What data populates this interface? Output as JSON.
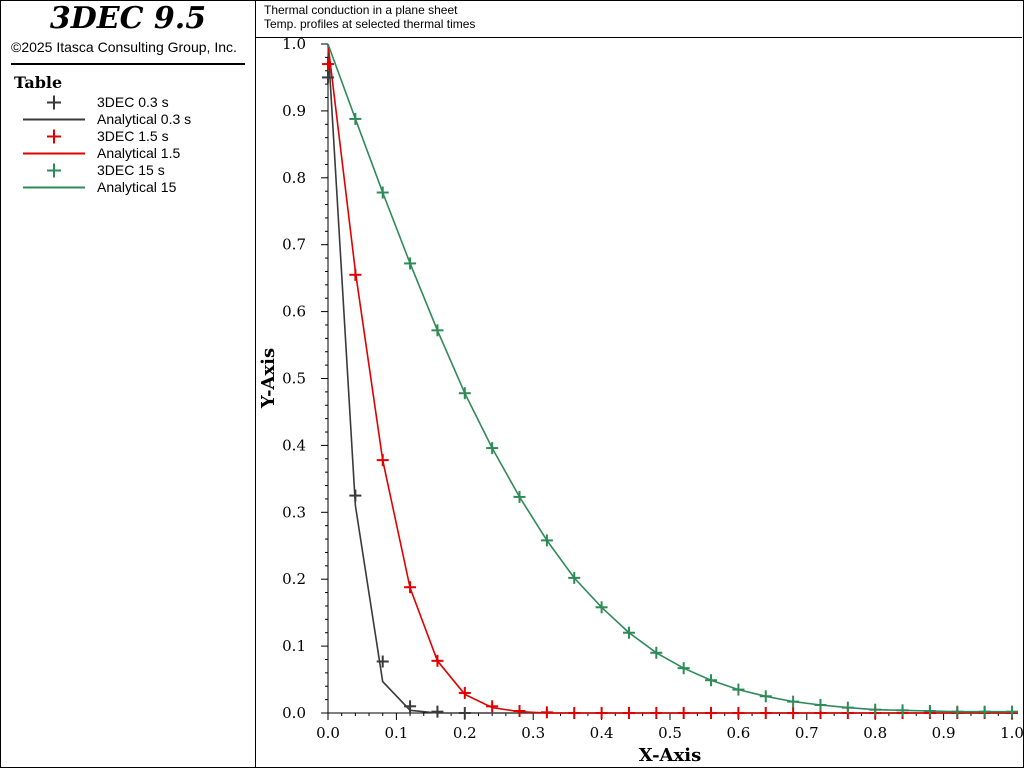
{
  "app": {
    "title": "3DEC 9.5",
    "copyright": "©2025 Itasca Consulting Group, Inc."
  },
  "legend": {
    "title": "Table",
    "items": [
      {
        "label": "3DEC 0.3 s",
        "kind": "marker",
        "color": "#3a3a3a"
      },
      {
        "label": "Analytical 0.3 s",
        "kind": "line",
        "color": "#3a3a3a"
      },
      {
        "label": "3DEC 1.5 s",
        "kind": "marker",
        "color": "#e00000"
      },
      {
        "label": "Analytical 1.5",
        "kind": "line",
        "color": "#e00000"
      },
      {
        "label": "3DEC 15 s",
        "kind": "marker",
        "color": "#2e8b57"
      },
      {
        "label": "Analytical 15",
        "kind": "line",
        "color": "#2e8b57"
      }
    ]
  },
  "plot": {
    "title": "Thermal conduction in a plane sheet",
    "subtitle": "Temp. profiles at selected thermal times"
  },
  "chart_data": {
    "type": "line",
    "xlabel": "X-Axis",
    "ylabel": "Y-Axis",
    "xlim": [
      0,
      1
    ],
    "ylim": [
      0,
      1
    ],
    "x_ticks": [
      "0.0",
      "0.1",
      "0.2",
      "0.3",
      "0.4",
      "0.5",
      "0.6",
      "0.7",
      "0.8",
      "0.9",
      "1.0"
    ],
    "y_ticks": [
      "0.0",
      "0.1",
      "0.2",
      "0.3",
      "0.4",
      "0.5",
      "0.6",
      "0.7",
      "0.8",
      "0.9",
      "1.0"
    ],
    "grid": false,
    "series": [
      {
        "name": "3DEC 0.3 s",
        "style": "marker",
        "color": "#3a3a3a",
        "x": [
          0,
          0.04,
          0.08,
          0.12,
          0.16,
          0.2
        ],
        "y": [
          0.95,
          0.325,
          0.077,
          0.01,
          0.002,
          0.0
        ]
      },
      {
        "name": "Analytical 0.3 s",
        "style": "line",
        "color": "#3a3a3a",
        "x": [
          0,
          0.04,
          0.08,
          0.12,
          0.16,
          0.2,
          1.0
        ],
        "y": [
          1.0,
          0.31,
          0.047,
          0.004,
          0.0,
          0.0,
          0.0
        ]
      },
      {
        "name": "3DEC 1.5 s",
        "style": "marker",
        "color": "#e00000",
        "x": [
          0,
          0.04,
          0.08,
          0.12,
          0.16,
          0.2,
          0.24,
          0.28,
          0.32,
          0.36,
          0.4,
          0.44,
          0.48,
          0.52,
          0.56,
          0.6,
          0.64,
          0.68,
          0.72,
          0.76,
          0.8,
          0.84,
          0.88,
          0.92,
          0.96,
          1.0
        ],
        "y": [
          0.97,
          0.655,
          0.378,
          0.188,
          0.078,
          0.03,
          0.01,
          0.003,
          0.001,
          0,
          0,
          0,
          0,
          0,
          0,
          0,
          0,
          0,
          0,
          0,
          0,
          0,
          0,
          0,
          0,
          0
        ]
      },
      {
        "name": "Analytical 1.5",
        "style": "line",
        "color": "#e00000",
        "x": [
          0,
          0.04,
          0.08,
          0.12,
          0.16,
          0.2,
          0.24,
          0.28,
          0.32,
          1.0
        ],
        "y": [
          1.0,
          0.66,
          0.378,
          0.187,
          0.078,
          0.028,
          0.008,
          0.002,
          0.0,
          0.0
        ]
      },
      {
        "name": "3DEC 15 s",
        "style": "marker",
        "color": "#2e8b57",
        "x": [
          0.04,
          0.08,
          0.12,
          0.16,
          0.2,
          0.24,
          0.28,
          0.32,
          0.36,
          0.4,
          0.44,
          0.48,
          0.52,
          0.56,
          0.6,
          0.64,
          0.68,
          0.72,
          0.76,
          0.8,
          0.84,
          0.88,
          0.92,
          0.96,
          1.0
        ],
        "y": [
          0.888,
          0.778,
          0.672,
          0.572,
          0.478,
          0.396,
          0.323,
          0.258,
          0.202,
          0.158,
          0.12,
          0.09,
          0.067,
          0.049,
          0.035,
          0.025,
          0.017,
          0.012,
          0.008,
          0.005,
          0.004,
          0.003,
          0.002,
          0.002,
          0.002
        ]
      },
      {
        "name": "Analytical 15",
        "style": "line",
        "color": "#2e8b57",
        "x": [
          0,
          0.04,
          0.08,
          0.12,
          0.16,
          0.2,
          0.24,
          0.28,
          0.32,
          0.36,
          0.4,
          0.44,
          0.48,
          0.52,
          0.56,
          0.6,
          0.64,
          0.68,
          0.72,
          0.76,
          0.8,
          0.84,
          0.88,
          0.92,
          0.96,
          1.0
        ],
        "y": [
          1.0,
          0.888,
          0.778,
          0.672,
          0.572,
          0.478,
          0.396,
          0.323,
          0.258,
          0.202,
          0.158,
          0.12,
          0.09,
          0.067,
          0.049,
          0.035,
          0.025,
          0.017,
          0.012,
          0.008,
          0.005,
          0.004,
          0.003,
          0.002,
          0.002,
          0.002
        ]
      }
    ]
  }
}
